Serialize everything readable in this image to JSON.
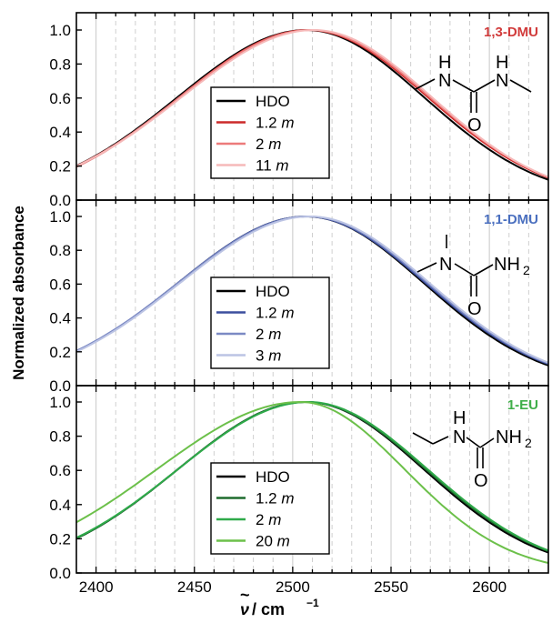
{
  "figure": {
    "ylabel": "Normalized absorbance",
    "xlabel_symbol": "ν",
    "xlabel_tilde": "~",
    "xlabel_unit": " / cm",
    "xlabel_exp": "−1"
  },
  "chart_data": [
    {
      "type": "line",
      "title": "1,3-DMU",
      "title_color": "#d13b3b",
      "molecule": "1,3-dimethylurea",
      "xlim": [
        2390,
        2630
      ],
      "ylim": [
        0.0,
        1.05
      ],
      "xticks": [
        2400,
        2450,
        2500,
        2550,
        2600
      ],
      "yticks": [
        "0.0",
        "0.2",
        "0.4",
        "0.6",
        "0.8",
        "1.0"
      ],
      "grid": "vertical dashed every 10",
      "legend_position": "left-lower-center",
      "series": [
        {
          "name": "HDO",
          "conc": "",
          "color": "#000000",
          "peak": 2507,
          "w_left": 68,
          "w_right": 62,
          "shift_blue": 0
        },
        {
          "name": "1.2",
          "conc": "m",
          "color": "#cc2a2a",
          "peak": 2508,
          "w_left": 68,
          "w_right": 63,
          "shift_blue": 0
        },
        {
          "name": "2",
          "conc": "m",
          "color": "#ec7b7b",
          "peak": 2509,
          "w_left": 69,
          "w_right": 63,
          "shift_blue": 0
        },
        {
          "name": "11",
          "conc": "m",
          "color": "#f6b9b9",
          "peak": 2511,
          "w_left": 70,
          "w_right": 62,
          "shift_blue": 0
        }
      ]
    },
    {
      "type": "line",
      "title": "1,1-DMU",
      "title_color": "#4a6fbf",
      "molecule": "1,1-dimethylurea",
      "xlim": [
        2390,
        2630
      ],
      "ylim": [
        0.0,
        1.05
      ],
      "xticks": [
        2400,
        2450,
        2500,
        2550,
        2600
      ],
      "yticks": [
        "0.0",
        "0.2",
        "0.4",
        "0.6",
        "0.8",
        "1.0"
      ],
      "grid": "vertical dashed every 10",
      "legend_position": "left-lower-center",
      "series": [
        {
          "name": "HDO",
          "conc": "",
          "color": "#000000",
          "peak": 2507,
          "w_left": 68,
          "w_right": 62
        },
        {
          "name": "1.2",
          "conc": "m",
          "color": "#3c4f9e",
          "peak": 2507,
          "w_left": 68,
          "w_right": 63
        },
        {
          "name": "2",
          "conc": "m",
          "color": "#7c8ac4",
          "peak": 2508,
          "w_left": 69,
          "w_right": 63
        },
        {
          "name": "3",
          "conc": "m",
          "color": "#bcc4e4",
          "peak": 2509,
          "w_left": 69,
          "w_right": 63
        }
      ]
    },
    {
      "type": "line",
      "title": "1-EU",
      "title_color": "#3fae49",
      "molecule": "1-ethylurea",
      "xlim": [
        2390,
        2630
      ],
      "ylim": [
        0.0,
        1.05
      ],
      "xticks": [
        2400,
        2450,
        2500,
        2550,
        2600
      ],
      "yticks": [
        "0.0",
        "0.2",
        "0.4",
        "0.6",
        "0.8",
        "1.0"
      ],
      "grid": "vertical dashed every 10",
      "legend_position": "left-lower-center",
      "series": [
        {
          "name": "HDO",
          "conc": "",
          "color": "#000000",
          "peak": 2507,
          "w_left": 68,
          "w_right": 62
        },
        {
          "name": "1.2",
          "conc": "m",
          "color": "#1e6b2e",
          "peak": 2507,
          "w_left": 68,
          "w_right": 63
        },
        {
          "name": "2",
          "conc": "m",
          "color": "#2faa4a",
          "peak": 2508,
          "w_left": 69,
          "w_right": 63
        },
        {
          "name": "20",
          "conc": "m",
          "color": "#6cc04a",
          "peak": 2504,
          "w_left": 76,
          "w_right": 55
        }
      ]
    }
  ],
  "chem_labels": {
    "p1": {
      "n1": "N",
      "h1": "H",
      "n2": "N",
      "h2": "H",
      "o": "O"
    },
    "p2": {
      "n1": "N",
      "nh2": "NH",
      "sub": "2",
      "o": "O"
    },
    "p3": {
      "h1": "H",
      "n1": "N",
      "nh2": "NH",
      "sub": "2",
      "o": "O"
    }
  }
}
